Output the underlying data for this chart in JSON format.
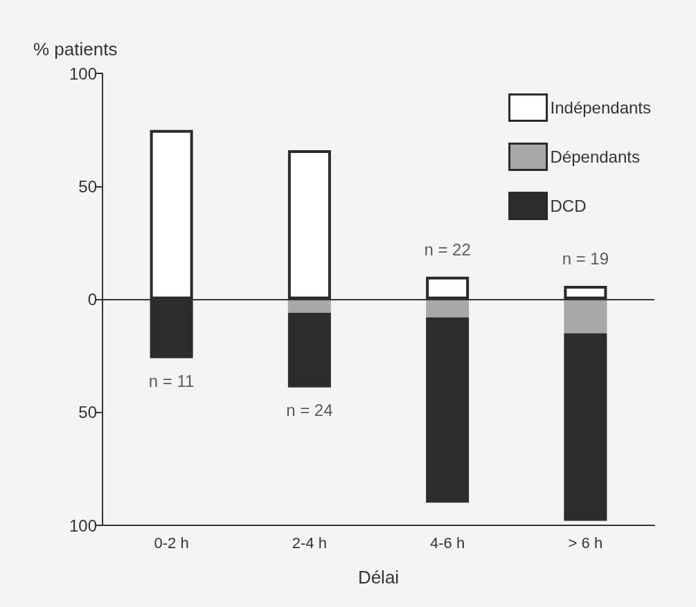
{
  "chart_data": {
    "type": "bar",
    "stacked": true,
    "ylabel": "% patients",
    "xlabel": "Délai",
    "categories": [
      "0-2 h",
      "2-4 h",
      "4-6 h",
      "> 6 h"
    ],
    "series": [
      {
        "name": "Indépendants",
        "color": "#ffffff",
        "values": [
          75,
          66,
          10,
          6
        ]
      },
      {
        "name": "Dépendants",
        "color": "#a8a8a8",
        "values": [
          0,
          -6,
          -8,
          -15
        ]
      },
      {
        "name": "DCD",
        "color": "#2e2b2e",
        "values": [
          -26,
          -33,
          -82,
          -83
        ]
      }
    ],
    "ylim": [
      -100,
      100
    ],
    "yticks": [
      100,
      50,
      0,
      {
        "value": -50,
        "label": "50"
      },
      {
        "value": -100,
        "label": "100"
      }
    ],
    "ref_lines": [
      {
        "axis": "y",
        "value": 0,
        "color": "#333333"
      }
    ],
    "annotations": [
      "n = 11",
      "n = 24",
      "n = 22",
      "n = 19"
    ],
    "legend": "top right",
    "grid": false
  }
}
